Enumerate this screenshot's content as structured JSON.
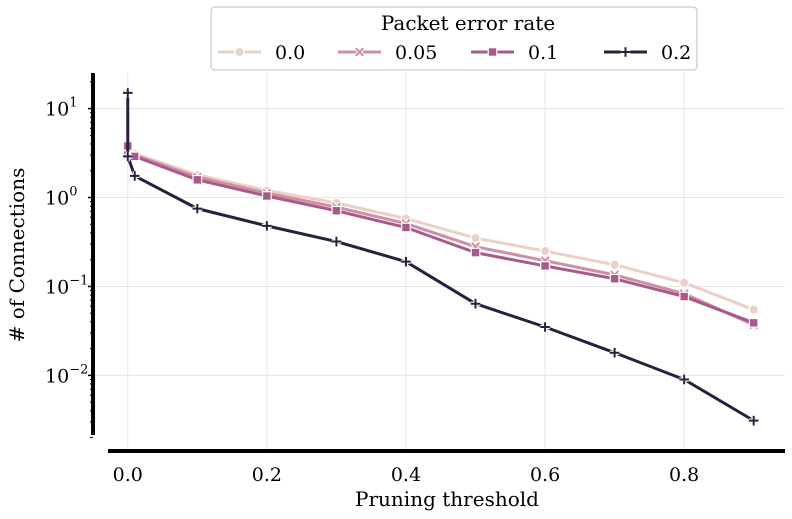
{
  "chart_data": {
    "type": "line",
    "title": "",
    "xlabel": "Pruning threshold",
    "ylabel": "# of Connections",
    "yscale": "log",
    "xlim": [
      -0.05,
      0.945
    ],
    "ylim_log10": [
      -2.85,
      1.4
    ],
    "grid": true,
    "x_ticks": [
      {
        "value": 0.0,
        "label": "0.0"
      },
      {
        "value": 0.2,
        "label": "0.2"
      },
      {
        "value": 0.4,
        "label": "0.4"
      },
      {
        "value": 0.6,
        "label": "0.6"
      },
      {
        "value": 0.8,
        "label": "0.8"
      }
    ],
    "y_ticks": [
      {
        "exp": 1,
        "base": "10",
        "sup": "1"
      },
      {
        "exp": 0,
        "base": "10",
        "sup": "0"
      },
      {
        "exp": -1,
        "base": "10",
        "sup": "−1"
      },
      {
        "exp": -2,
        "base": "10",
        "sup": "−2"
      }
    ],
    "legend": {
      "title": "Packet error rate",
      "position": "top-center",
      "ncol": 4
    },
    "series": [
      {
        "name": "0.0",
        "color": "#ecd0c5",
        "marker": "circle",
        "x": [
          0.0,
          0.0,
          0.01,
          0.1,
          0.2,
          0.3,
          0.4,
          0.5,
          0.6,
          0.7,
          0.8,
          0.9
        ],
        "y": [
          4.0,
          3.2,
          3.1,
          1.8,
          1.2,
          0.87,
          0.58,
          0.35,
          0.25,
          0.175,
          0.11,
          0.055
        ]
      },
      {
        "name": "0.05",
        "color": "#d08ea4",
        "marker": "x",
        "x": [
          0.0,
          0.0,
          0.01,
          0.1,
          0.2,
          0.3,
          0.4,
          0.5,
          0.6,
          0.7,
          0.8,
          0.9
        ],
        "y": [
          3.9,
          3.1,
          3.0,
          1.7,
          1.12,
          0.78,
          0.51,
          0.28,
          0.195,
          0.135,
          0.083,
          0.037
        ]
      },
      {
        "name": "0.1",
        "color": "#a85a8c",
        "marker": "square",
        "x": [
          0.0,
          0.0,
          0.01,
          0.1,
          0.2,
          0.3,
          0.4,
          0.5,
          0.6,
          0.7,
          0.8,
          0.9
        ],
        "y": [
          3.8,
          3.0,
          2.9,
          1.58,
          1.04,
          0.71,
          0.46,
          0.24,
          0.17,
          0.122,
          0.077,
          0.039
        ]
      },
      {
        "name": "0.2",
        "color": "#2d1e3e",
        "marker": "plus",
        "x": [
          0.0,
          0.0,
          0.01,
          0.1,
          0.2,
          0.3,
          0.4,
          0.5,
          0.6,
          0.7,
          0.8,
          0.9
        ],
        "y": [
          15.0,
          2.9,
          1.75,
          0.75,
          0.48,
          0.32,
          0.19,
          0.064,
          0.035,
          0.018,
          0.009,
          0.0031
        ]
      }
    ]
  }
}
